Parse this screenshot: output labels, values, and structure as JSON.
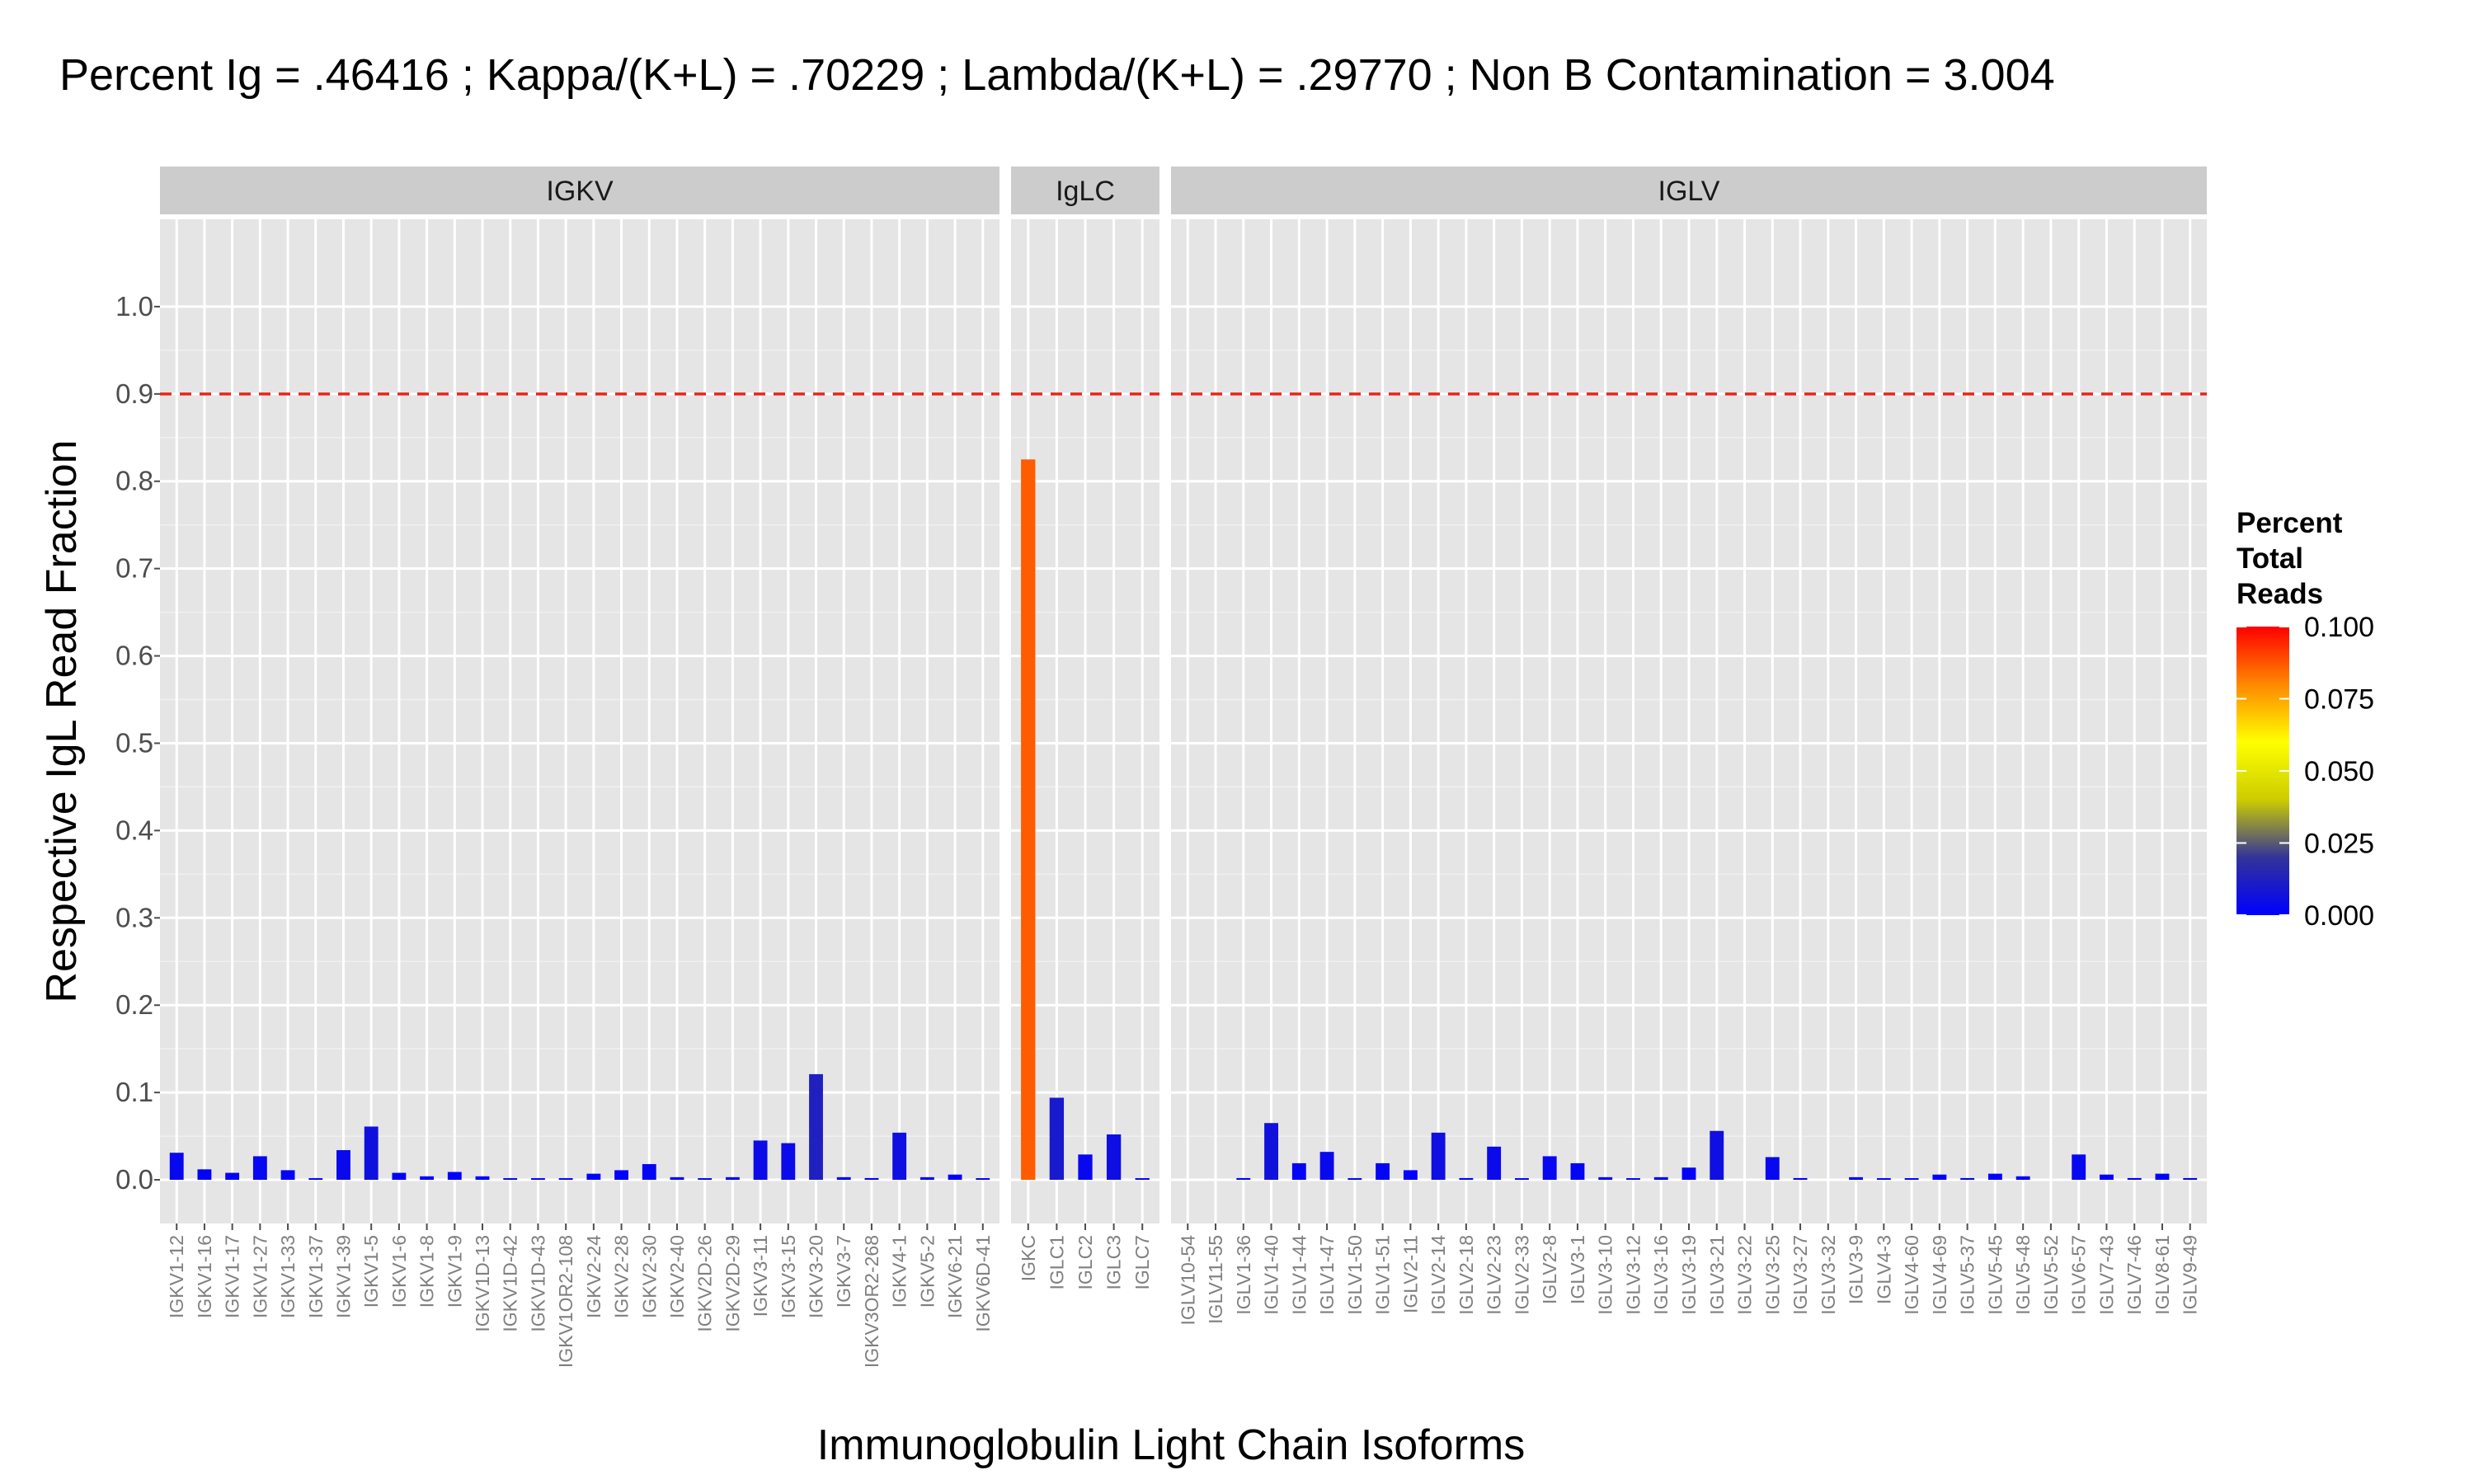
{
  "chart_data": {
    "type": "bar",
    "title": "Percent Ig = .46416 ; Kappa/(K+L) = .70229 ; Lambda/(K+L) = .29770 ; Non B Contamination = 3.004",
    "xlabel": "Immunoglobulin Light Chain Isoforms",
    "ylabel": "Respective IgL Read Fraction",
    "ylim": [
      -0.05,
      1.1
    ],
    "y_ticks": [
      "0.0",
      "0.1",
      "0.2",
      "0.3",
      "0.4",
      "0.5",
      "0.6",
      "0.7",
      "0.8",
      "0.9",
      "1.0"
    ],
    "reference_line": {
      "y": 0.9,
      "style": "dashed",
      "color": "#e8261b"
    },
    "grid": true,
    "legend": {
      "title": "Percent Total Reads",
      "position": "right",
      "ticks": [
        "0.000",
        "0.025",
        "0.050",
        "0.075",
        "0.100"
      ],
      "range": [
        0,
        0.1
      ],
      "colors": [
        "#0000ff",
        "#333399",
        "#cccc00",
        "#ffff00",
        "#ff8800",
        "#ff0000"
      ]
    },
    "colors": {
      "panel_bg": "#e5e5e5",
      "strip_bg": "#cccccc",
      "grid_major": "#ffffff",
      "grid_minor": "#f0f0f0"
    },
    "panels": [
      {
        "name": "IGKV",
        "categories": [
          "IGKV1-12",
          "IGKV1-16",
          "IGKV1-17",
          "IGKV1-27",
          "IGKV1-33",
          "IGKV1-37",
          "IGKV1-39",
          "IGKV1-5",
          "IGKV1-6",
          "IGKV1-8",
          "IGKV1-9",
          "IGKV1D-13",
          "IGKV1D-42",
          "IGKV1D-43",
          "IGKV1OR2-108",
          "IGKV2-24",
          "IGKV2-28",
          "IGKV2-30",
          "IGKV2-40",
          "IGKV2D-26",
          "IGKV2D-29",
          "IGKV3-11",
          "IGKV3-15",
          "IGKV3-20",
          "IGKV3-7",
          "IGKV3OR2-268",
          "IGKV4-1",
          "IGKV5-2",
          "IGKV6-21",
          "IGKV6D-41"
        ],
        "values": [
          0.031,
          0.012,
          0.008,
          0.027,
          0.011,
          0.001,
          0.034,
          0.061,
          0.008,
          0.004,
          0.009,
          0.004,
          0.001,
          0.001,
          0.001,
          0.007,
          0.011,
          0.018,
          0.003,
          0.001,
          0.003,
          0.045,
          0.042,
          0.121,
          0.003,
          0.002,
          0.054,
          0.003,
          0.006,
          0.001
        ],
        "fill": [
          0.0032,
          0.0013,
          0.0008,
          0.0028,
          0.0012,
          0.0001,
          0.0035,
          0.0064,
          0.0009,
          0.0004,
          0.001,
          0.0004,
          0.0001,
          0.0001,
          0.0001,
          0.0007,
          0.0012,
          0.0019,
          0.0003,
          0.0001,
          0.0003,
          0.0047,
          0.0044,
          0.0127,
          0.0003,
          0.0002,
          0.0057,
          0.0003,
          0.0006,
          0.0001
        ]
      },
      {
        "name": "IgLC",
        "categories": [
          "IGKC",
          "IGLC1",
          "IGLC2",
          "IGLC3",
          "IGLC7"
        ],
        "values": [
          0.825,
          0.094,
          0.029,
          0.052,
          0.001
        ],
        "fill": [
          0.0866,
          0.0099,
          0.003,
          0.0055,
          0.0001
        ]
      },
      {
        "name": "IGLV",
        "categories": [
          "IGLV10-54",
          "IGLV11-55",
          "IGLV1-36",
          "IGLV1-40",
          "IGLV1-44",
          "IGLV1-47",
          "IGLV1-50",
          "IGLV1-51",
          "IGLV2-11",
          "IGLV2-14",
          "IGLV2-18",
          "IGLV2-23",
          "IGLV2-33",
          "IGLV2-8",
          "IGLV3-1",
          "IGLV3-10",
          "IGLV3-12",
          "IGLV3-16",
          "IGLV3-19",
          "IGLV3-21",
          "IGLV3-22",
          "IGLV3-25",
          "IGLV3-27",
          "IGLV3-32",
          "IGLV3-9",
          "IGLV4-3",
          "IGLV4-60",
          "IGLV4-69",
          "IGLV5-37",
          "IGLV5-45",
          "IGLV5-48",
          "IGLV5-52",
          "IGLV6-57",
          "IGLV7-43",
          "IGLV7-46",
          "IGLV8-61",
          "IGLV9-49"
        ],
        "values": [
          0,
          0,
          0.002,
          0.065,
          0.019,
          0.032,
          0.001,
          0.019,
          0.011,
          0.054,
          0.002,
          0.038,
          0.001,
          0.027,
          0.019,
          0.003,
          0.001,
          0.003,
          0.014,
          0.056,
          0,
          0.026,
          0.002,
          0,
          0.003,
          0.001,
          0.001,
          0.006,
          0.002,
          0.007,
          0.004,
          0,
          0.029,
          0.006,
          0.002,
          0.007,
          0.002
        ],
        "fill": [
          0,
          0,
          0.0002,
          0.0068,
          0.002,
          0.0034,
          0.0001,
          0.002,
          0.0012,
          0.0057,
          0.0002,
          0.004,
          0.0001,
          0.0028,
          0.002,
          0.0003,
          0.0001,
          0.0003,
          0.0015,
          0.0059,
          0,
          0.0027,
          0.0002,
          0,
          0.0003,
          0.0001,
          0.0001,
          0.0006,
          0.0002,
          0.0007,
          0.0004,
          0,
          0.003,
          0.0006,
          0.0002,
          0.0007,
          0.0002
        ]
      }
    ]
  }
}
